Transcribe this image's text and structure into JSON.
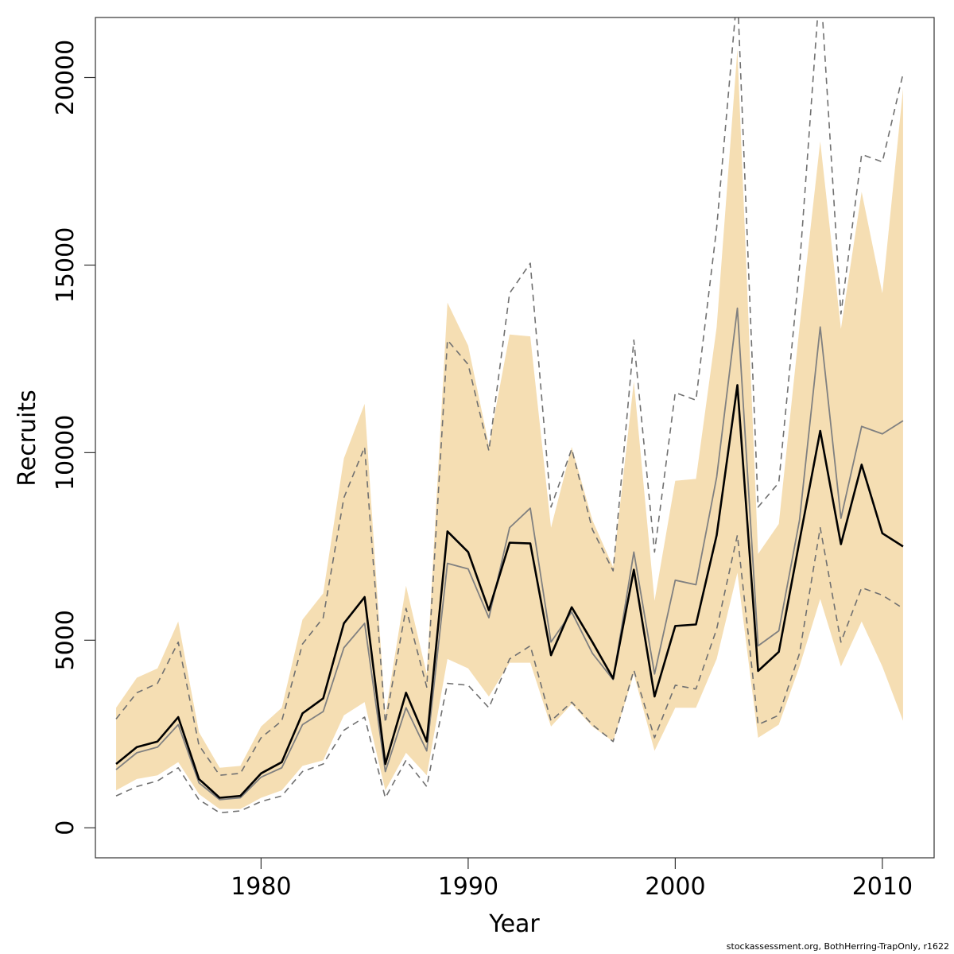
{
  "chart_data": {
    "type": "line",
    "xlabel": "Year",
    "ylabel": "Recruits",
    "xlim": [
      1972,
      2012.5
    ],
    "ylim": [
      -800,
      21600
    ],
    "x_ticks": [
      1980,
      1990,
      2000,
      2010
    ],
    "y_ticks": [
      0,
      5000,
      10000,
      15000,
      20000
    ],
    "grid": false,
    "colors": {
      "band": "#f5deb3",
      "main": "#000000",
      "secondary": "#808080",
      "dashed": "#707070"
    },
    "x": [
      1973,
      1974,
      1975,
      1976,
      1977,
      1978,
      1979,
      1980,
      1981,
      1982,
      1983,
      1984,
      1985,
      1986,
      1987,
      1988,
      1989,
      1990,
      1991,
      1992,
      1993,
      1994,
      1995,
      1996,
      1997,
      1998,
      1999,
      2000,
      2001,
      2002,
      2003,
      2004,
      2005,
      2006,
      2007,
      2008,
      2009,
      2010,
      2011
    ],
    "series": [
      {
        "role": "interval-band-upper",
        "values": [
          3200,
          4000,
          4250,
          5500,
          2550,
          1600,
          1650,
          2700,
          3200,
          5550,
          6250,
          9850,
          11300,
          3000,
          6450,
          4100,
          14000,
          12850,
          10200,
          13150,
          13100,
          8000,
          10150,
          8200,
          6950,
          11900,
          6050,
          9250,
          9300,
          13350,
          20750,
          7300,
          8100,
          13350,
          18300,
          13300,
          16950,
          14250,
          19700
        ]
      },
      {
        "role": "interval-band-lower",
        "values": [
          1000,
          1300,
          1400,
          1750,
          900,
          500,
          500,
          800,
          1000,
          1650,
          1800,
          3000,
          3350,
          1000,
          2000,
          1400,
          4500,
          4250,
          3500,
          4400,
          4400,
          2700,
          3300,
          2700,
          2300,
          4100,
          2050,
          3200,
          3200,
          4500,
          6800,
          2400,
          2750,
          4300,
          6100,
          4300,
          5500,
          4300,
          2850
        ]
      },
      {
        "role": "main-estimate",
        "values": [
          1700,
          2150,
          2300,
          2950,
          1300,
          800,
          850,
          1450,
          1750,
          3050,
          3450,
          5450,
          6150,
          1700,
          3600,
          2300,
          7900,
          7350,
          5800,
          7600,
          7580,
          4600,
          5880,
          4950,
          3980,
          6880,
          3500,
          5380,
          5420,
          7800,
          11800,
          4180,
          4690,
          7650,
          10580,
          7560,
          9680,
          7850,
          7500
        ]
      },
      {
        "role": "secondary-estimate",
        "values": [
          1550,
          2000,
          2150,
          2750,
          1200,
          750,
          800,
          1350,
          1600,
          2750,
          3100,
          4800,
          5450,
          1500,
          3200,
          2050,
          7050,
          6900,
          5600,
          8000,
          8520,
          4950,
          5750,
          4650,
          3950,
          7350,
          4100,
          6600,
          6480,
          9350,
          13850,
          4850,
          5250,
          8200,
          13350,
          8250,
          10700,
          10500,
          10850
        ]
      },
      {
        "role": "dashed-upper",
        "values": [
          2900,
          3600,
          3850,
          4950,
          2200,
          1400,
          1450,
          2400,
          2850,
          4900,
          5600,
          8800,
          10150,
          2800,
          5850,
          3750,
          13000,
          12350,
          10050,
          14250,
          15050,
          8550,
          10100,
          7950,
          6850,
          13000,
          7350,
          11600,
          11400,
          16000,
          22300,
          8550,
          9200,
          14950,
          22600,
          13700,
          17950,
          17750,
          20100
        ]
      },
      {
        "role": "dashed-lower",
        "values": [
          850,
          1100,
          1250,
          1600,
          750,
          400,
          450,
          700,
          850,
          1500,
          1700,
          2600,
          2950,
          800,
          1800,
          1100,
          3850,
          3800,
          3200,
          4500,
          4850,
          2850,
          3350,
          2750,
          2300,
          4200,
          2400,
          3800,
          3700,
          5300,
          7800,
          2750,
          3000,
          4650,
          8000,
          4950,
          6400,
          6200,
          5850
        ]
      }
    ]
  },
  "footer": "stockassessment.org, BothHerring-TrapOnly, r1622"
}
